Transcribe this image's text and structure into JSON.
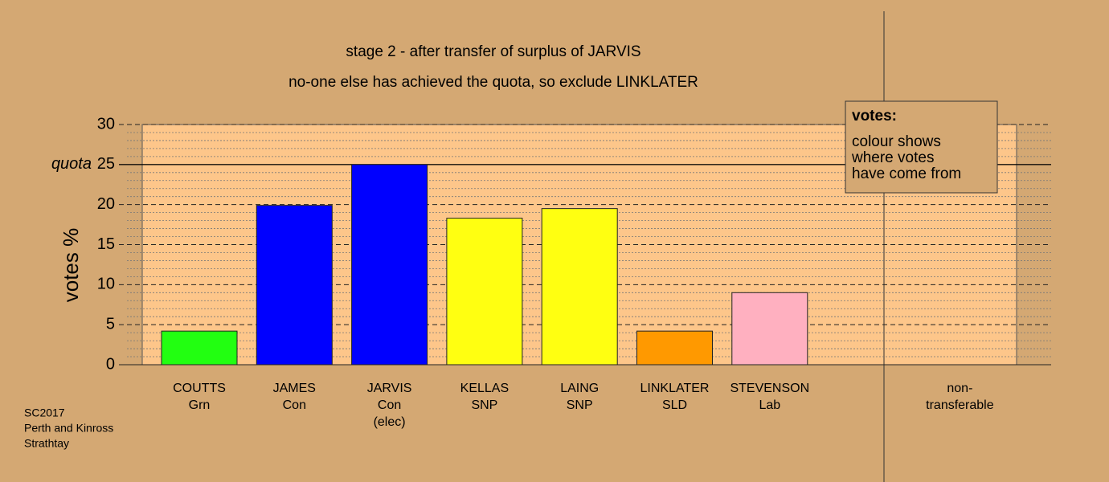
{
  "chart_data": {
    "type": "bar",
    "title": "stage 2 - after transfer of surplus of JARVIS",
    "subtitle": "no-one else has achieved the quota, so exclude LINKLATER",
    "y_label": "votes %",
    "categories": [
      [
        "COUTTS",
        "Grn"
      ],
      [
        "JAMES",
        "Con"
      ],
      [
        "JARVIS",
        "Con",
        "(elec)"
      ],
      [
        "KELLAS",
        "SNP"
      ],
      [
        "LAING",
        "SNP"
      ],
      [
        "LINKLATER",
        "SLD"
      ],
      [
        "STEVENSON",
        "Lab"
      ],
      null,
      [
        "non-",
        "transferable"
      ]
    ],
    "values": [
      4.2,
      19.9,
      25.0,
      18.3,
      19.5,
      4.2,
      9.0,
      null,
      0
    ],
    "colors": [
      "#22ff11",
      "#0000ff",
      "#0000ff",
      "#ffff11",
      "#ffff11",
      "#ff9900",
      "#ffb0c0",
      null,
      "#888888"
    ],
    "ylim": [
      0,
      30
    ],
    "yticks": [
      0,
      5,
      10,
      15,
      20,
      25,
      30
    ],
    "quota": 25,
    "quota_label": "quota",
    "legend": {
      "title": "votes:",
      "lines": [
        "colour shows",
        "where votes",
        "have come from"
      ]
    },
    "footnote": [
      "SC2017",
      "Perth and Kinross",
      "Strathtay"
    ]
  }
}
